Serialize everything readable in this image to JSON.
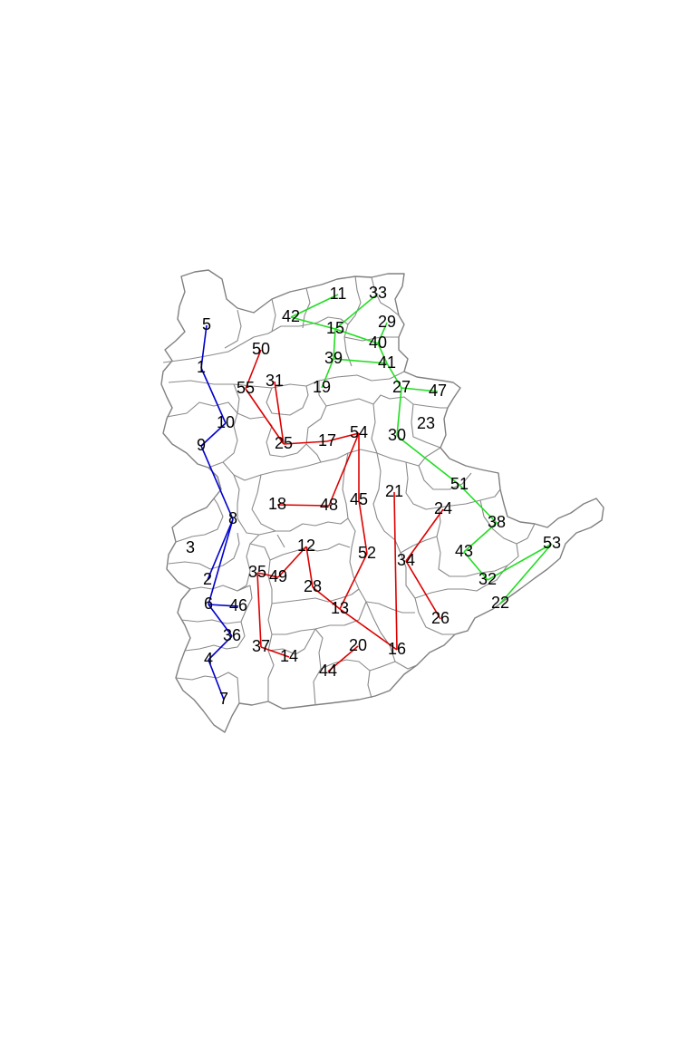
{
  "map": {
    "colors": {
      "background": "#ffffff",
      "boundary": "#808080",
      "group_blue": "#0000cc",
      "group_green": "#22dd22",
      "group_red": "#dd0000",
      "label": "#000000"
    },
    "region_labels": [
      "1",
      "2",
      "3",
      "4",
      "5",
      "6",
      "7",
      "8",
      "9",
      "10",
      "11",
      "12",
      "13",
      "14",
      "15",
      "16",
      "17",
      "18",
      "19",
      "20",
      "21",
      "22",
      "23",
      "24",
      "25",
      "26",
      "27",
      "28",
      "29",
      "30",
      "31",
      "32",
      "33",
      "34",
      "35",
      "36",
      "37",
      "38",
      "39",
      "40",
      "41",
      "42",
      "43",
      "44",
      "45",
      "46",
      "47",
      "48",
      "49",
      "50",
      "51",
      "52",
      "53",
      "54",
      "55"
    ],
    "connections": {
      "blue": [
        [
          "5",
          "1"
        ],
        [
          "1",
          "10"
        ],
        [
          "10",
          "9"
        ],
        [
          "9",
          "8"
        ],
        [
          "8",
          "2"
        ],
        [
          "8",
          "6"
        ],
        [
          "6",
          "46"
        ],
        [
          "6",
          "36"
        ],
        [
          "36",
          "4"
        ],
        [
          "4",
          "7"
        ]
      ],
      "green": [
        [
          "42",
          "11"
        ],
        [
          "42",
          "15"
        ],
        [
          "33",
          "15"
        ],
        [
          "15",
          "40"
        ],
        [
          "29",
          "40"
        ],
        [
          "15",
          "39"
        ],
        [
          "39",
          "41"
        ],
        [
          "39",
          "19"
        ],
        [
          "40",
          "41"
        ],
        [
          "41",
          "27"
        ],
        [
          "27",
          "47"
        ],
        [
          "27",
          "30"
        ],
        [
          "30",
          "51"
        ],
        [
          "51",
          "38"
        ],
        [
          "38",
          "43"
        ],
        [
          "43",
          "32"
        ],
        [
          "32",
          "53"
        ],
        [
          "53",
          "22"
        ]
      ],
      "red": [
        [
          "50",
          "55"
        ],
        [
          "55",
          "25"
        ],
        [
          "31",
          "25"
        ],
        [
          "25",
          "17"
        ],
        [
          "17",
          "54"
        ],
        [
          "54",
          "48"
        ],
        [
          "54",
          "45"
        ],
        [
          "18",
          "48"
        ],
        [
          "45",
          "52"
        ],
        [
          "52",
          "13"
        ],
        [
          "12",
          "49"
        ],
        [
          "12",
          "28"
        ],
        [
          "28",
          "13"
        ],
        [
          "13",
          "16"
        ],
        [
          "35",
          "49"
        ],
        [
          "35",
          "37"
        ],
        [
          "37",
          "14"
        ],
        [
          "20",
          "44"
        ],
        [
          "21",
          "16"
        ],
        [
          "34",
          "24"
        ],
        [
          "34",
          "26"
        ]
      ]
    }
  }
}
